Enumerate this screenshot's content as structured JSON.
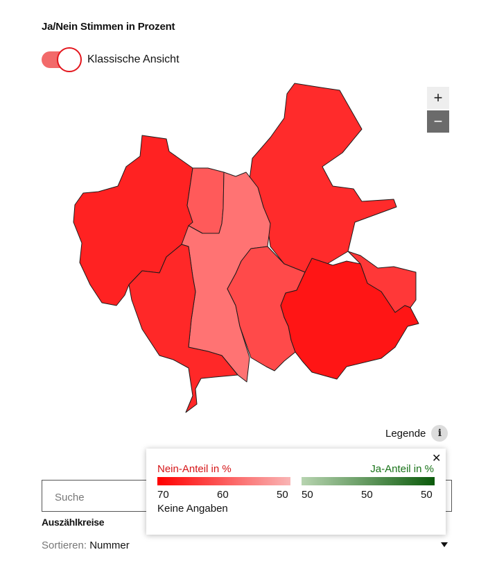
{
  "heading": "Ja/Nein Stimmen in Prozent",
  "toggle": {
    "label": "Klassische Ansicht",
    "on": true
  },
  "zoom": {
    "in_label": "+",
    "out_label": "−"
  },
  "map": {
    "districts": [
      {
        "id": "north-east",
        "color": "#ff2b2b"
      },
      {
        "id": "west",
        "color": "#ff2222"
      },
      {
        "id": "north-center",
        "color": "#ff5a5a"
      },
      {
        "id": "center",
        "color": "#ff7373"
      },
      {
        "id": "south-center",
        "color": "#ff4a4a"
      },
      {
        "id": "south-west",
        "color": "#ff2828"
      },
      {
        "id": "east",
        "color": "#ff3838"
      },
      {
        "id": "south-east",
        "color": "#ff1515"
      }
    ]
  },
  "legend_button": {
    "label": "Legende",
    "icon": "info-icon"
  },
  "legend": {
    "close": "✕",
    "nein_title": "Nein-Anteil in %",
    "ja_title": "Ja-Anteil in %",
    "nein_colors": [
      "#ff0000",
      "#f9b5b5"
    ],
    "ja_colors": [
      "#b7d4b0",
      "#0b5a0b"
    ],
    "nein_ticks": [
      "70",
      "60",
      "50"
    ],
    "ja_ticks": [
      "50",
      "50",
      "50"
    ],
    "no_data": "Keine Angaben"
  },
  "search": {
    "placeholder": "Suche"
  },
  "list": {
    "title": "Auszählkreise",
    "sort_label": "Sortieren:",
    "sort_value": "Nummer"
  }
}
